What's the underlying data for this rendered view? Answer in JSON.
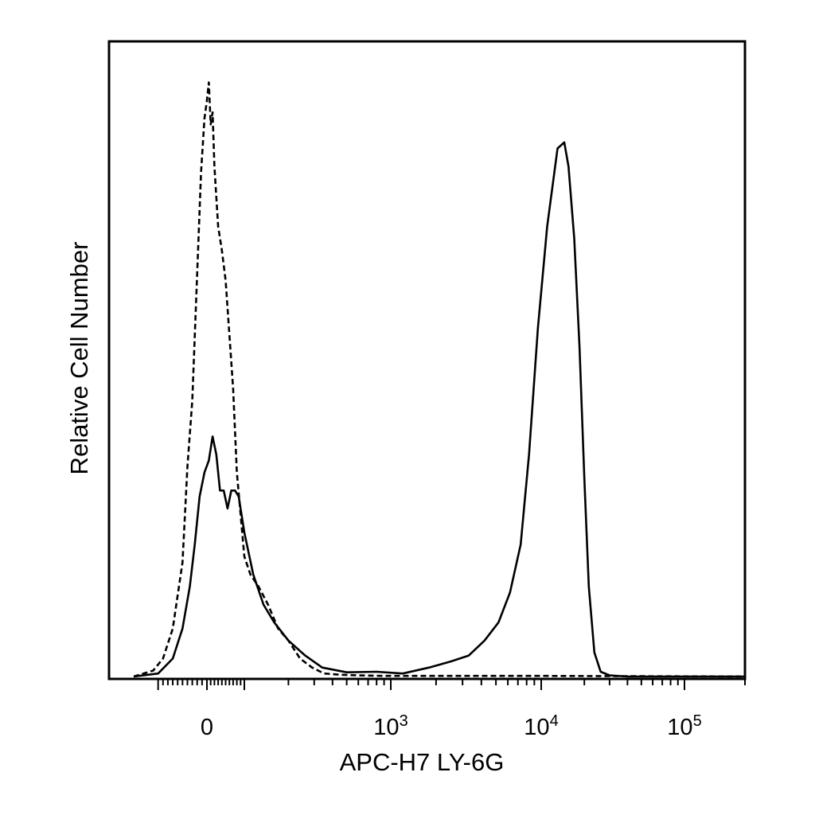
{
  "chart_data": {
    "type": "line",
    "title": "",
    "xlabel": "APC-H7 LY-6G",
    "ylabel": "Relative Cell Number",
    "x_scale": "biexponential",
    "xlim": [
      -150,
      200000
    ],
    "ylim": [
      0,
      100
    ],
    "grid": false,
    "legend": "none",
    "x_tick_labels": [
      {
        "value": 0,
        "base": "0",
        "exp": ""
      },
      {
        "value": 1000,
        "base": "10",
        "exp": "3"
      },
      {
        "value": 10000,
        "base": "10",
        "exp": "4"
      },
      {
        "value": 100000,
        "base": "10",
        "exp": "5"
      }
    ],
    "series": [
      {
        "style": "dashed",
        "color": "#000000",
        "points": [
          [
            -150,
            0
          ],
          [
            -110,
            1
          ],
          [
            -90,
            3
          ],
          [
            -70,
            8
          ],
          [
            -50,
            19
          ],
          [
            -40,
            35
          ],
          [
            -30,
            46
          ],
          [
            -20,
            67
          ],
          [
            -12,
            84
          ],
          [
            -5,
            93
          ],
          [
            0,
            96
          ],
          [
            5,
            99
          ],
          [
            10,
            92
          ],
          [
            15,
            94
          ],
          [
            20,
            85
          ],
          [
            30,
            75
          ],
          [
            40,
            71
          ],
          [
            50,
            66
          ],
          [
            60,
            57
          ],
          [
            70,
            48
          ],
          [
            80,
            34
          ],
          [
            90,
            27
          ],
          [
            100,
            20
          ],
          [
            110,
            17
          ],
          [
            125,
            15
          ],
          [
            145,
            12
          ],
          [
            170,
            8
          ],
          [
            200,
            6
          ],
          [
            240,
            3
          ],
          [
            290,
            1.5
          ],
          [
            350,
            0.5
          ],
          [
            450,
            0.3
          ],
          [
            600,
            0.2
          ],
          [
            900,
            0.1
          ],
          [
            3000,
            0.1
          ],
          [
            10000,
            0.1
          ],
          [
            200000,
            0
          ]
        ]
      },
      {
        "style": "solid",
        "color": "#000000",
        "points": [
          [
            -150,
            0
          ],
          [
            -100,
            0.5
          ],
          [
            -70,
            3
          ],
          [
            -50,
            8
          ],
          [
            -35,
            15
          ],
          [
            -25,
            22
          ],
          [
            -15,
            30
          ],
          [
            -5,
            34
          ],
          [
            5,
            36
          ],
          [
            15,
            40
          ],
          [
            25,
            37
          ],
          [
            35,
            31
          ],
          [
            45,
            31
          ],
          [
            55,
            28
          ],
          [
            65,
            31
          ],
          [
            75,
            31
          ],
          [
            85,
            30
          ],
          [
            100,
            24
          ],
          [
            115,
            17
          ],
          [
            135,
            12
          ],
          [
            160,
            9
          ],
          [
            200,
            6
          ],
          [
            260,
            3.5
          ],
          [
            340,
            1.5
          ],
          [
            500,
            0.7
          ],
          [
            800,
            0.8
          ],
          [
            1200,
            0.5
          ],
          [
            1800,
            1.5
          ],
          [
            2500,
            2.5
          ],
          [
            3300,
            3.5
          ],
          [
            4200,
            6
          ],
          [
            5200,
            9
          ],
          [
            6200,
            14
          ],
          [
            7300,
            22
          ],
          [
            8300,
            37
          ],
          [
            9500,
            58
          ],
          [
            11000,
            75
          ],
          [
            13000,
            88
          ],
          [
            14500,
            89
          ],
          [
            15500,
            85
          ],
          [
            17000,
            73
          ],
          [
            18500,
            55
          ],
          [
            20000,
            33
          ],
          [
            21500,
            15
          ],
          [
            23500,
            4
          ],
          [
            26000,
            0.8
          ],
          [
            30000,
            0.2
          ],
          [
            40000,
            0
          ],
          [
            200000,
            0
          ]
        ]
      }
    ]
  }
}
